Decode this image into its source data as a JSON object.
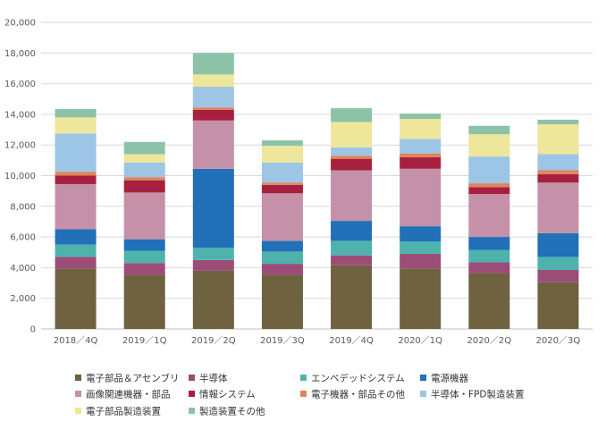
{
  "chart_data": {
    "type": "bar",
    "stacked": true,
    "categories": [
      "2018／4Q",
      "2019／1Q",
      "2019／2Q",
      "2019／3Q",
      "2019／4Q",
      "2020／1Q",
      "2020／2Q",
      "2020／3Q"
    ],
    "ylim": [
      0,
      20000
    ],
    "yticks": [
      "0",
      "2,000",
      "4,000",
      "6,000",
      "8,000",
      "10,000",
      "12,000",
      "14,000",
      "16,000",
      "18,000",
      "20,000"
    ],
    "grid": true,
    "legend_position": "bottom",
    "series": [
      {
        "name": "電子部品＆アセンブリ",
        "color": "#6e6240",
        "values": [
          3950,
          3550,
          3800,
          3550,
          4150,
          3950,
          3650,
          3050
        ]
      },
      {
        "name": "半導体",
        "color": "#9c4d77",
        "values": [
          750,
          750,
          700,
          700,
          650,
          950,
          700,
          800
        ]
      },
      {
        "name": "エンベデッドシステム",
        "color": "#4db3ac",
        "values": [
          800,
          800,
          800,
          800,
          950,
          800,
          800,
          850
        ]
      },
      {
        "name": "電源機器",
        "color": "#2170b8",
        "values": [
          1000,
          750,
          5150,
          700,
          1300,
          1000,
          850,
          1550
        ]
      },
      {
        "name": "画像関連機器・部品",
        "color": "#c491a8",
        "values": [
          2950,
          3050,
          3150,
          3100,
          3300,
          3750,
          2800,
          3300
        ]
      },
      {
        "name": "情報システム",
        "color": "#a8203f",
        "values": [
          550,
          800,
          700,
          550,
          750,
          750,
          450,
          550
        ]
      },
      {
        "name": "電子機器・部品その他",
        "color": "#e0845a",
        "values": [
          250,
          200,
          150,
          150,
          200,
          250,
          250,
          250
        ]
      },
      {
        "name": "半導体・FPD製造装置",
        "color": "#9dc5e6",
        "values": [
          2500,
          950,
          1350,
          1300,
          550,
          950,
          1750,
          1050
        ]
      },
      {
        "name": "電子部品製造装置",
        "color": "#ede69b",
        "values": [
          1050,
          550,
          800,
          1100,
          1650,
          1300,
          1450,
          1950
        ]
      },
      {
        "name": "製造装置その他",
        "color": "#8cc3a8",
        "values": [
          550,
          800,
          1400,
          350,
          900,
          350,
          550,
          300
        ]
      }
    ]
  }
}
